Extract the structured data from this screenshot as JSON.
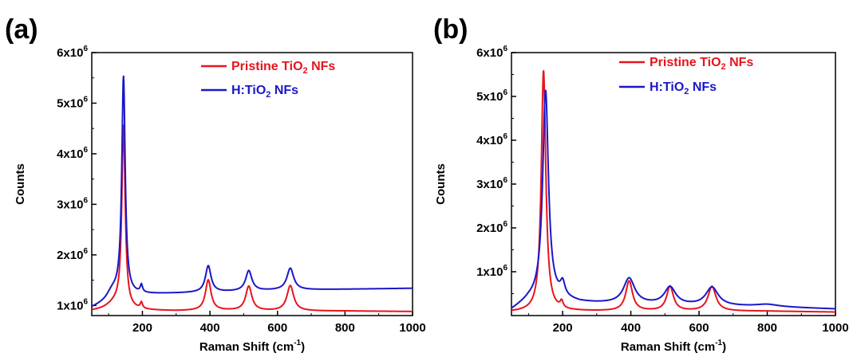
{
  "chart_data": [
    {
      "type": "line",
      "panel_label": "(a)",
      "xlabel": "Raman Shift (cm",
      "xlabel_sup": "-1",
      "xlabel_tail": ")",
      "ylabel": "Counts",
      "xlim": [
        50,
        1000
      ],
      "ylim": [
        800000,
        6000000
      ],
      "xticks": [
        200,
        400,
        600,
        800,
        1000
      ],
      "yticks": [
        {
          "value": 1000000,
          "base": "1x10",
          "exp": "6"
        },
        {
          "value": 2000000,
          "base": "2x10",
          "exp": "6"
        },
        {
          "value": 3000000,
          "base": "3x10",
          "exp": "6"
        },
        {
          "value": 4000000,
          "base": "4x10",
          "exp": "6"
        },
        {
          "value": 5000000,
          "base": "5x10",
          "exp": "6"
        },
        {
          "value": 6000000,
          "base": "6x10",
          "exp": "6"
        }
      ],
      "legend_position": "top-right",
      "series": [
        {
          "name_pre": "Pristine TiO",
          "name_sub": "2",
          "name_post": " NFs",
          "color": "#e8141c",
          "baseline": [
            [
              50,
              890000
            ],
            [
              100,
              920000
            ],
            [
              200,
              900000
            ],
            [
              300,
              890000
            ],
            [
              400,
              900000
            ],
            [
              600,
              890000
            ],
            [
              800,
              890000
            ],
            [
              1000,
              880000
            ]
          ],
          "peaks": [
            [
              144,
              3600000,
              6
            ],
            [
              120,
              120000,
              25
            ],
            [
              197,
              120000,
              4
            ],
            [
              395,
              600000,
              10
            ],
            [
              515,
              480000,
              11
            ],
            [
              638,
              500000,
              12
            ]
          ]
        },
        {
          "name_pre": "H:TiO",
          "name_sub": "2",
          "name_post": " NFs",
          "color": "#1a17c8",
          "baseline": [
            [
              50,
              950000
            ],
            [
              90,
              1050000
            ],
            [
              130,
              1200000
            ],
            [
              200,
              1220000
            ],
            [
              300,
              1240000
            ],
            [
              400,
              1260000
            ],
            [
              600,
              1300000
            ],
            [
              800,
              1320000
            ],
            [
              1000,
              1340000
            ]
          ],
          "peaks": [
            [
              144,
              4300000,
              6
            ],
            [
              110,
              150000,
              20
            ],
            [
              197,
              150000,
              4
            ],
            [
              395,
              520000,
              10
            ],
            [
              515,
              400000,
              11
            ],
            [
              638,
              430000,
              12
            ]
          ]
        }
      ]
    },
    {
      "type": "line",
      "panel_label": "(b)",
      "xlabel": "Raman Shift (cm",
      "xlabel_sup": "-1",
      "xlabel_tail": ")",
      "ylabel": "Counts",
      "xlim": [
        50,
        1000
      ],
      "ylim": [
        0,
        6000000
      ],
      "xticks": [
        200,
        400,
        600,
        800,
        1000
      ],
      "yticks": [
        {
          "value": 1000000,
          "base": "1x10",
          "exp": "6"
        },
        {
          "value": 2000000,
          "base": "2x10",
          "exp": "6"
        },
        {
          "value": 3000000,
          "base": "3x10",
          "exp": "6"
        },
        {
          "value": 4000000,
          "base": "4x10",
          "exp": "6"
        },
        {
          "value": 5000000,
          "base": "5x10",
          "exp": "6"
        },
        {
          "value": 6000000,
          "base": "6x10",
          "exp": "6"
        }
      ],
      "legend_position": "top-right",
      "series": [
        {
          "name_pre": "Pristine TiO",
          "name_sub": "2",
          "name_post": " NFs",
          "color": "#e8141c",
          "baseline": [
            [
              50,
              80000
            ],
            [
              200,
              100000
            ],
            [
              400,
              100000
            ],
            [
              600,
              100000
            ],
            [
              800,
              100000
            ],
            [
              1000,
              80000
            ]
          ],
          "peaks": [
            [
              144,
              5500000,
              8
            ],
            [
              197,
              150000,
              5
            ],
            [
              395,
              680000,
              12
            ],
            [
              515,
              560000,
              12
            ],
            [
              638,
              560000,
              14
            ]
          ]
        },
        {
          "name_pre": "H:TiO",
          "name_sub": "2",
          "name_post": " NFs",
          "color": "#1a17c8",
          "baseline": [
            [
              50,
              120000
            ],
            [
              100,
              350000
            ],
            [
              140,
              450000
            ],
            [
              250,
              300000
            ],
            [
              300,
              280000
            ],
            [
              400,
              260000
            ],
            [
              600,
              220000
            ],
            [
              800,
              200000
            ],
            [
              1000,
              150000
            ]
          ],
          "peaks": [
            [
              150,
              4700000,
              10
            ],
            [
              200,
              300000,
              8
            ],
            [
              395,
              580000,
              20
            ],
            [
              515,
              400000,
              20
            ],
            [
              638,
              420000,
              22
            ],
            [
              800,
              50000,
              40
            ]
          ]
        }
      ]
    }
  ]
}
